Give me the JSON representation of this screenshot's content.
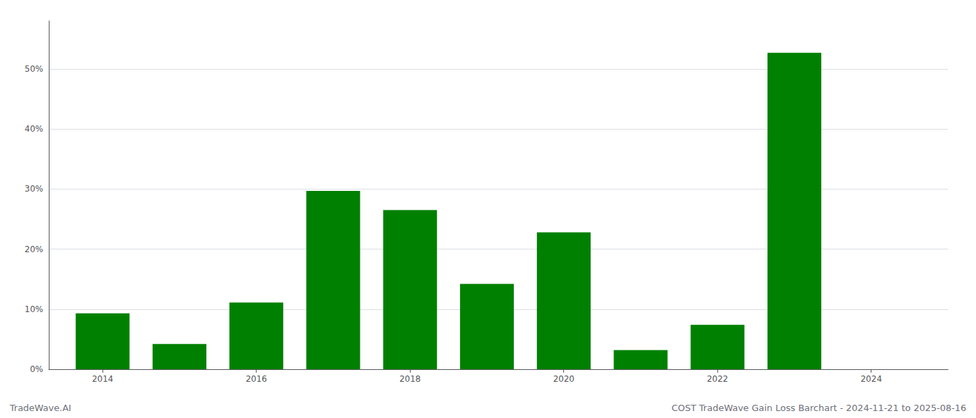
{
  "chart_data": {
    "type": "bar",
    "x": [
      2014,
      2015,
      2016,
      2017,
      2018,
      2019,
      2020,
      2021,
      2022,
      2023,
      2024
    ],
    "values": [
      9.3,
      4.2,
      11.1,
      29.7,
      26.5,
      14.2,
      22.8,
      3.2,
      7.4,
      52.7,
      0.0
    ],
    "color": "#008000",
    "xlim": [
      2013.3,
      2025.0
    ],
    "xticks": [
      2014,
      2016,
      2018,
      2020,
      2022,
      2024
    ],
    "ylim": [
      0,
      58
    ],
    "yticks": [
      {
        "value": 0,
        "label": "0%"
      },
      {
        "value": 10,
        "label": "10%"
      },
      {
        "value": 20,
        "label": "20%"
      },
      {
        "value": 30,
        "label": "30%"
      },
      {
        "value": 40,
        "label": "40%"
      },
      {
        "value": 50,
        "label": "50%"
      }
    ],
    "grid": true,
    "annotations": [
      "TradeWave.AI",
      "COST TradeWave Gain Loss Barchart - 2024-11-21 to 2025-08-16"
    ]
  }
}
